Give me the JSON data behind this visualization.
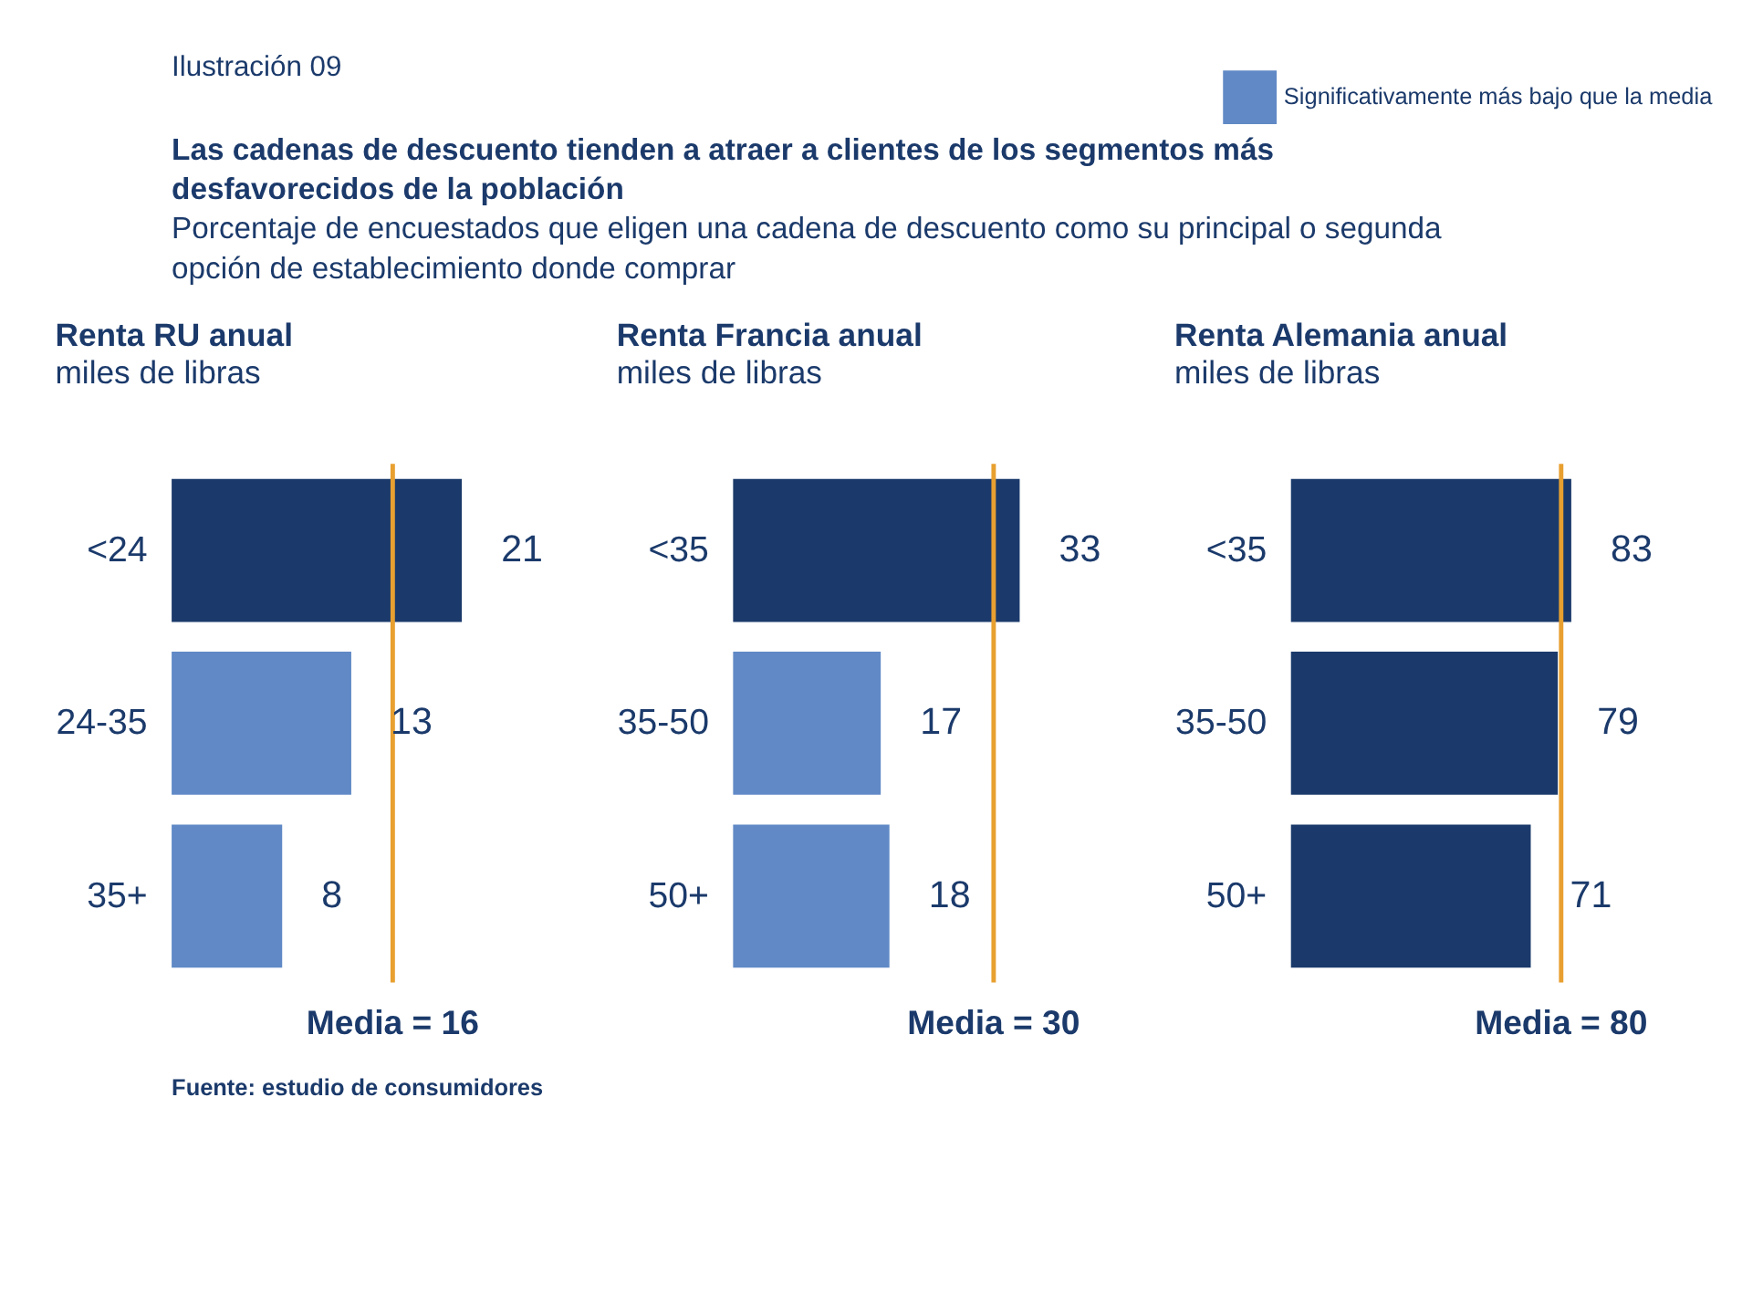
{
  "chart_data": [
    {
      "type": "bar",
      "orientation": "horizontal",
      "title": "Renta RU anual",
      "subtitle": "miles de libras",
      "categories": [
        "<24",
        "24-35",
        "35+"
      ],
      "series": [
        {
          "color": "#1b3a6b",
          "values": [
            21,
            null,
            null
          ]
        },
        {
          "name": "Significativamente más bajo que la media",
          "color": "#6089c6",
          "values": [
            null,
            13,
            8
          ]
        }
      ],
      "tick_labels": "y",
      "data_labels": true,
      "legend": "top right",
      "ref_lines": [
        {
          "axis": "x",
          "value": 16,
          "label": "Media = 16",
          "color": "#e8a030"
        }
      ],
      "annotations": [
        "Ilustración 09",
        "Las cadenas de descuento tienden a atraer a clientes de los segmentos más desfavorecidos de la población",
        "Porcentaje de encuestados que eligen una cadena de descuento como su principal o segunda opción de establecimiento donde comprar",
        "Fuente: estudio de consumidores"
      ]
    },
    {
      "type": "bar",
      "orientation": "horizontal",
      "title": "Renta Francia anual",
      "subtitle": "miles de libras",
      "categories": [
        "<35",
        "35-50",
        "50+"
      ],
      "series": [
        {
          "color": "#1b3a6b",
          "values": [
            33,
            null,
            null
          ]
        },
        {
          "name": "Significativamente más bajo que la media",
          "color": "#6089c6",
          "values": [
            null,
            17,
            18
          ]
        }
      ],
      "tick_labels": "y",
      "data_labels": true,
      "ref_lines": [
        {
          "axis": "x",
          "value": 30,
          "label": "Media = 30",
          "color": "#e8a030"
        }
      ]
    },
    {
      "type": "bar",
      "orientation": "horizontal",
      "title": "Renta Alemania anual",
      "subtitle": "miles de libras",
      "categories": [
        "<35",
        "35-50",
        "50+"
      ],
      "series": [
        {
          "color": "#1b3a6b",
          "values": [
            83,
            79,
            71
          ]
        }
      ],
      "tick_labels": "y",
      "data_labels": true,
      "ref_lines": [
        {
          "axis": "x",
          "value": 80,
          "label": "Media = 80",
          "color": "#e8a030"
        }
      ]
    }
  ]
}
